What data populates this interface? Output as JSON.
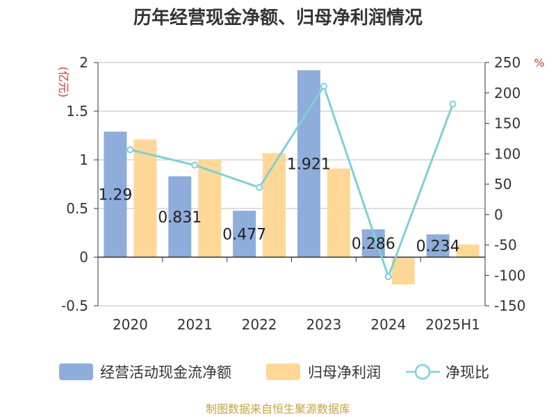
{
  "colors": {
    "bar1": "#8EADDB",
    "bar2": "#FFD898",
    "line": "#7DD0D6",
    "axis": "#333333",
    "grid": "#BFBFBF",
    "unit_red": "#E03030",
    "footer": "#C4A245"
  },
  "footer": "制图数据来自恒生聚源数据库",
  "chart_data": {
    "type": "bar",
    "title": "历年经营现金净额、归母净利润情况",
    "categories": [
      "2020",
      "2021",
      "2022",
      "2023",
      "2024",
      "2025H1"
    ],
    "ylabel_left": "(亿元)",
    "ylabel_right": "%",
    "ylim_left": [
      -0.5,
      2
    ],
    "yticks_left": [
      -0.5,
      0,
      0.5,
      1,
      1.5,
      2
    ],
    "ylim_right": [
      -150,
      250
    ],
    "yticks_right": [
      -150,
      -100,
      -50,
      0,
      50,
      100,
      150,
      200,
      250
    ],
    "grid": true,
    "legend_position": "bottom",
    "series": [
      {
        "name": "经营活动现金流净额",
        "type": "bar",
        "axis": "left",
        "values": [
          1.29,
          0.831,
          0.477,
          1.921,
          0.286,
          0.234
        ],
        "labels": [
          "1.29",
          "0.831",
          "0.477",
          "1.921",
          "0.286",
          "0.234"
        ]
      },
      {
        "name": "归母净利润",
        "type": "bar",
        "axis": "left",
        "values": [
          1.21,
          1.0,
          1.07,
          0.91,
          -0.28,
          0.13
        ]
      },
      {
        "name": "净现比",
        "type": "line",
        "axis": "right",
        "values": [
          106.6,
          81.3,
          44.6,
          211.1,
          -102.1,
          182.0
        ]
      }
    ]
  }
}
